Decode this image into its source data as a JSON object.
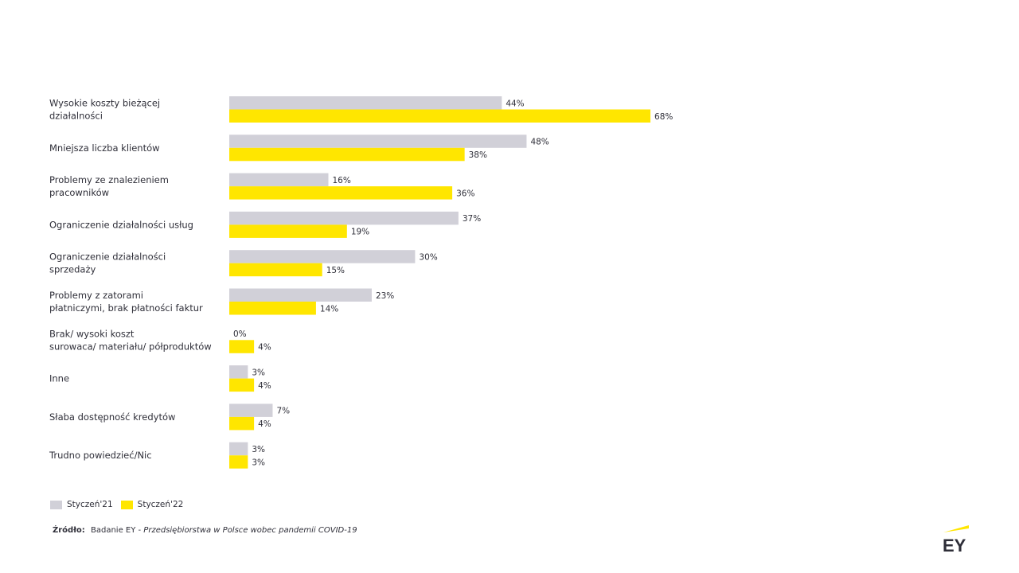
{
  "chart_data": {
    "type": "bar",
    "orientation": "horizontal",
    "categories": [
      [
        "Wysokie  koszty  bieżącej",
        "działalności"
      ],
      [
        "Mniejsza  liczba  klientów"
      ],
      [
        "Problemy  ze znalezieniem",
        "pracowników"
      ],
      [
        "Ograniczenie  działalności   usług"
      ],
      [
        "Ograniczenie   działalności",
        "sprzedaży"
      ],
      [
        "Problemy  z zatorami",
        "płatniczymi,  brak płatności  faktur"
      ],
      [
        "Brak/  wysoki koszt",
        "surowaca/  materiału/  półproduktów"
      ],
      [
        "Inne"
      ],
      [
        "Słaba  dostępność  kredytów"
      ],
      [
        "Trudno  powiedzieć/Nic"
      ]
    ],
    "series": [
      {
        "name": "Styczeń'21",
        "color": "#d1d0d8",
        "values": [
          44,
          48,
          16,
          37,
          30,
          23,
          0,
          3,
          7,
          3
        ]
      },
      {
        "name": "Styczeń'22",
        "color": "#ffe600",
        "values": [
          68,
          38,
          36,
          19,
          15,
          14,
          4,
          4,
          4,
          3
        ]
      }
    ],
    "value_suffix": "%",
    "xlim": [
      0,
      100
    ],
    "grid": false,
    "legend_position": "bottom-left"
  },
  "legend": {
    "items": [
      {
        "label": "Styczeń'21",
        "color": "#d1d0d8"
      },
      {
        "label": "Styczeń'22",
        "color": "#ffe600"
      }
    ]
  },
  "source": {
    "prefix": "Źródło:",
    "text": "Badanie EY -",
    "title": "Przedsiębiorstwa w Polsce wobec pandemii COVID-19"
  },
  "logo": {
    "text": "EY",
    "accent": "#ffe600",
    "ink": "#2e2e38"
  }
}
